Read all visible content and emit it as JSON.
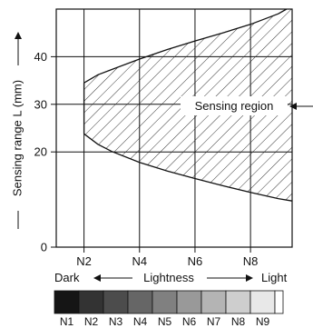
{
  "chart_data": {
    "type": "area",
    "title": "",
    "ylabel": "Sensing range L (mm)",
    "xlabel": "Lightness",
    "x_categories": [
      "N1",
      "N2",
      "N3",
      "N4",
      "N5",
      "N6",
      "N7",
      "N8",
      "N9"
    ],
    "x_tick_labels": [
      "N2",
      "N4",
      "N6",
      "N8"
    ],
    "y_ticks": [
      0,
      20,
      30,
      40
    ],
    "ylim": [
      0,
      50
    ],
    "xlim": [
      1,
      9.5
    ],
    "grid": true,
    "upper_boundary": [
      {
        "x": 2.0,
        "y": 34.5
      },
      {
        "x": 2.5,
        "y": 36.2
      },
      {
        "x": 3.0,
        "y": 37.3
      },
      {
        "x": 4.0,
        "y": 39.5
      },
      {
        "x": 5.0,
        "y": 41.5
      },
      {
        "x": 6.0,
        "y": 43.3
      },
      {
        "x": 7.0,
        "y": 45.0
      },
      {
        "x": 8.0,
        "y": 46.8
      },
      {
        "x": 9.0,
        "y": 49.0
      },
      {
        "x": 9.3,
        "y": 50.0
      }
    ],
    "lower_boundary": [
      {
        "x": 2.0,
        "y": 23.8
      },
      {
        "x": 2.5,
        "y": 21.6
      },
      {
        "x": 3.0,
        "y": 20.1
      },
      {
        "x": 4.0,
        "y": 17.8
      },
      {
        "x": 5.0,
        "y": 16.0
      },
      {
        "x": 6.0,
        "y": 14.4
      },
      {
        "x": 7.0,
        "y": 12.9
      },
      {
        "x": 8.0,
        "y": 11.5
      },
      {
        "x": 9.0,
        "y": 10.2
      },
      {
        "x": 9.5,
        "y": 9.7
      }
    ],
    "region_label": "Sensing region",
    "lightness_left_label": "Dark",
    "lightness_right_label": "Light",
    "scale_colors": [
      "#151515",
      "#333333",
      "#4c4c4c",
      "#666666",
      "#808080",
      "#999999",
      "#b4b4b4",
      "#cecece",
      "#e8e8e8",
      "#ffffff"
    ]
  }
}
